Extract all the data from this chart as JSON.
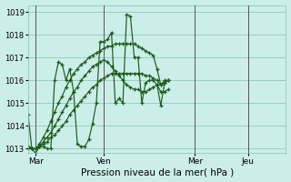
{
  "xlabel_label": "Pression niveau de la mer( hPa )",
  "background_color": "#cceee8",
  "grid_color": "#99cccc",
  "line_color": "#1a5c1a",
  "ylim": [
    1012.8,
    1019.3
  ],
  "yticks": [
    1013,
    1014,
    1015,
    1016,
    1017,
    1018,
    1019
  ],
  "x_tick_labels": [
    "Mar",
    "Ven",
    "Mer",
    "Jeu"
  ],
  "x_tick_positions": [
    2,
    20,
    44,
    58
  ],
  "vline_positions": [
    2,
    20,
    44,
    58
  ],
  "xlim": [
    0,
    68
  ],
  "series": [
    [
      1014.5,
      1013.0,
      1012.8,
      1013.1,
      1013.1,
      1013.0,
      1013.0,
      1016.0,
      1016.8,
      1016.7,
      1016.0,
      1016.5,
      1015.5,
      1013.2,
      1013.1,
      1013.1,
      1013.4,
      1014.1,
      1015.0,
      1017.7,
      1017.7,
      1017.8,
      1018.1,
      1015.0,
      1015.2,
      1015.0,
      1018.9,
      1018.8,
      1017.0,
      1017.0,
      1015.0,
      1015.9,
      1016.0,
      1016.0,
      1015.8,
      1014.9,
      1015.9,
      1016.0
    ],
    [
      1013.0,
      1013.0,
      1013.0,
      1013.2,
      1013.5,
      1013.8,
      1014.2,
      1014.6,
      1015.0,
      1015.3,
      1015.7,
      1016.0,
      1016.3,
      1016.5,
      1016.7,
      1016.8,
      1017.0,
      1017.1,
      1017.2,
      1017.3,
      1017.4,
      1017.5,
      1017.5,
      1017.6,
      1017.6,
      1017.6,
      1017.6,
      1017.6,
      1017.6,
      1017.5,
      1017.4,
      1017.3,
      1017.2,
      1017.1,
      1016.5,
      1015.8,
      1016.0,
      1016.0
    ],
    [
      1013.1,
      1013.0,
      1013.0,
      1013.1,
      1013.2,
      1013.3,
      1013.5,
      1013.6,
      1013.8,
      1014.0,
      1014.2,
      1014.5,
      1014.7,
      1014.9,
      1015.1,
      1015.3,
      1015.5,
      1015.7,
      1015.8,
      1016.0,
      1016.1,
      1016.2,
      1016.3,
      1016.3,
      1016.3,
      1016.3,
      1016.3,
      1016.3,
      1016.3,
      1016.3,
      1016.3,
      1016.2,
      1016.2,
      1016.1,
      1016.0,
      1015.8,
      1015.9,
      1016.0
    ],
    [
      1013.1,
      1013.0,
      1013.0,
      1013.1,
      1013.3,
      1013.5,
      1013.7,
      1014.0,
      1014.3,
      1014.6,
      1014.9,
      1015.2,
      1015.5,
      1015.7,
      1016.0,
      1016.2,
      1016.4,
      1016.6,
      1016.7,
      1016.8,
      1016.9,
      1016.8,
      1016.6,
      1016.4,
      1016.2,
      1016.0,
      1015.8,
      1015.7,
      1015.6,
      1015.6,
      1015.5,
      1015.5,
      1015.6,
      1015.7,
      1015.8,
      1015.5,
      1015.5,
      1015.6
    ]
  ]
}
